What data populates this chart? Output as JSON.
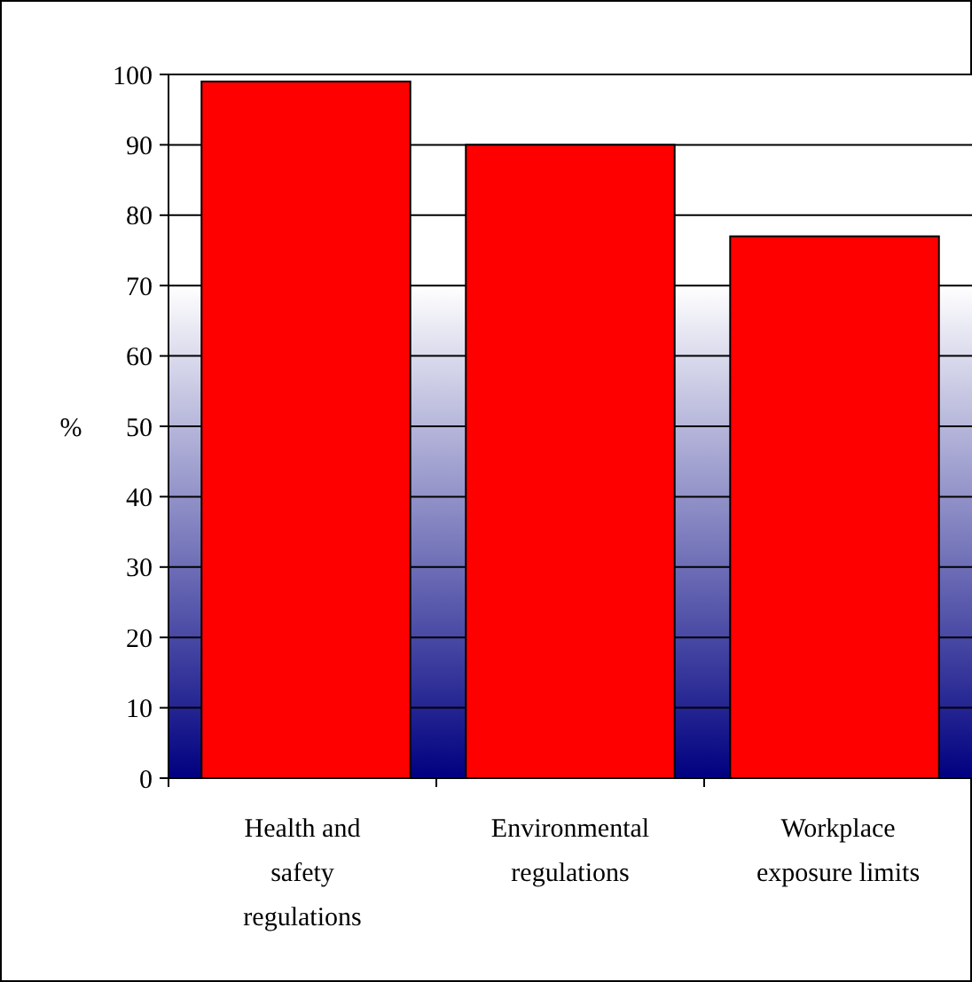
{
  "chart_data": {
    "type": "bar",
    "ylabel": "%",
    "categories": [
      "Health and safety regulations",
      "Environmental regulations",
      "Workplace exposure limits"
    ],
    "values": [
      99,
      90,
      77
    ],
    "color": "#ff0000",
    "ylim": [
      0,
      100
    ],
    "yticks": [
      0,
      10,
      20,
      30,
      40,
      50,
      60,
      70,
      80,
      90,
      100
    ],
    "grid": "y"
  }
}
